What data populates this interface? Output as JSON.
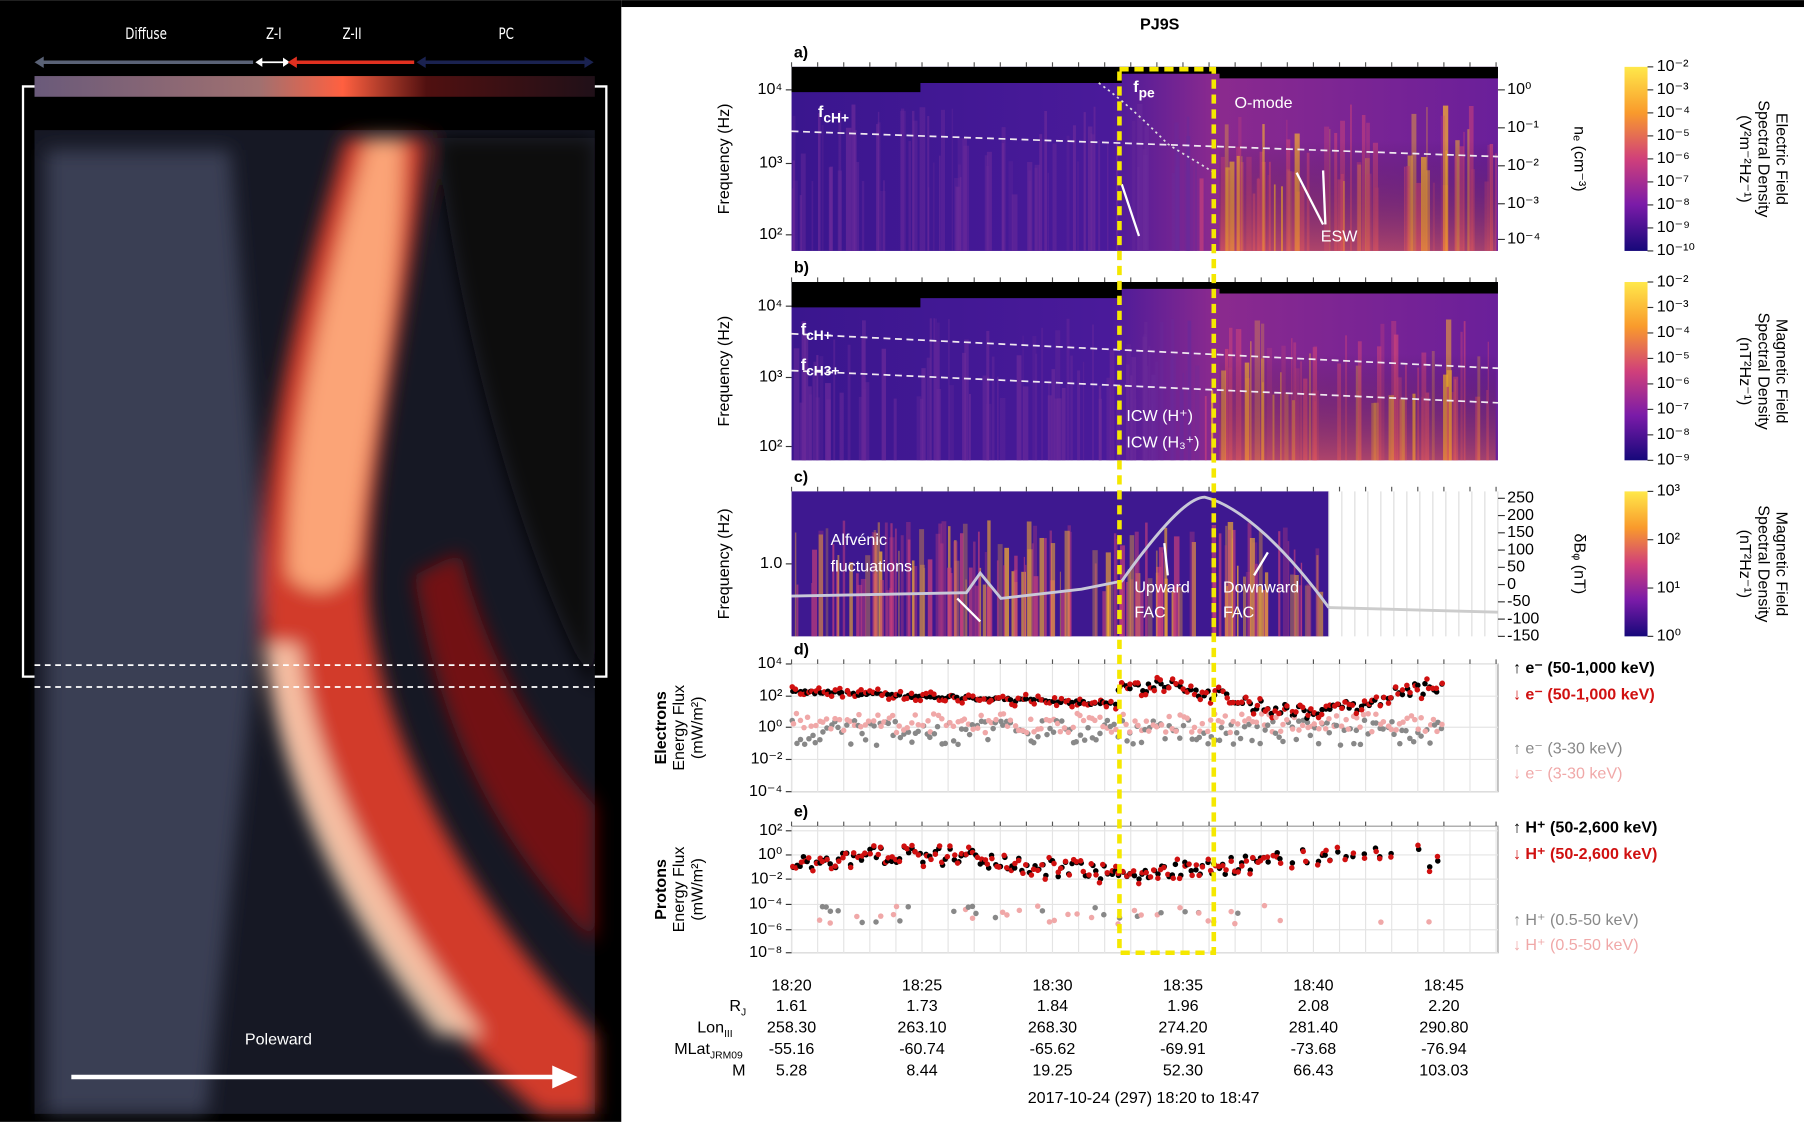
{
  "left_image": {
    "zones": [
      "Diffuse",
      "Z-I",
      "Z-II",
      "PC"
    ],
    "direction": "Poleward"
  },
  "title": "PJ9S",
  "panels": [
    {
      "label": "a)",
      "y_label": [
        "Frequency (Hz)"
      ],
      "y_ticks": [
        "10⁴",
        "10³",
        "10²"
      ],
      "annotations": [
        {
          "text": "f",
          "sub": "cH+"
        },
        {
          "text": "f",
          "sub": "pe"
        },
        {
          "text": "O-mode"
        },
        {
          "text": "ESW"
        }
      ],
      "right_ticks": [
        "10⁰",
        "10⁻¹",
        "10⁻²",
        "10⁻³",
        "10⁻⁴"
      ],
      "right_label": "nₑ (cm⁻³)",
      "colorbar_ticks": [
        "10⁻²",
        "10⁻³",
        "10⁻⁴",
        "10⁻⁵",
        "10⁻⁶",
        "10⁻⁷",
        "10⁻⁸",
        "10⁻⁹",
        "10⁻¹⁰"
      ],
      "colorbar_label": [
        "Electric Field",
        "Spectral Density",
        "(V²m⁻²Hz⁻¹)"
      ]
    },
    {
      "label": "b)",
      "y_label": [
        "Frequency (Hz)"
      ],
      "y_ticks": [
        "10⁴",
        "10³",
        "10²"
      ],
      "annotations": [
        {
          "text": "f",
          "sub": "cH+"
        },
        {
          "text": "f",
          "sub": "cH3+"
        },
        {
          "text": "ICW (H⁺)"
        },
        {
          "text": "ICW (H₃⁺)"
        }
      ],
      "colorbar_ticks": [
        "10⁻²",
        "10⁻³",
        "10⁻⁴",
        "10⁻⁵",
        "10⁻⁶",
        "10⁻⁷",
        "10⁻⁸",
        "10⁻⁹"
      ],
      "colorbar_label": [
        "Magnetic Field",
        "Spectral Density",
        "(nT²Hz⁻¹)"
      ]
    },
    {
      "label": "c)",
      "y_label": [
        "Frequency (Hz)"
      ],
      "y_ticks": [
        "1.0"
      ],
      "annotations": [
        {
          "text": "Alfvénic"
        },
        {
          "text": "fluctuations"
        },
        {
          "text": "Upward"
        },
        {
          "text": "FAC"
        },
        {
          "text": "Downward"
        },
        {
          "text": "FAC"
        }
      ],
      "right_ticks": [
        "250",
        "200",
        "150",
        "100",
        "50",
        "0",
        "-50",
        "-100",
        "-150"
      ],
      "right_label": "δBᵩ (nT)",
      "colorbar_ticks": [
        "10³",
        "10²",
        "10¹",
        "10⁰"
      ],
      "colorbar_label": [
        "Magnetic Field",
        "Spectral Density",
        "(nT²Hz⁻¹)"
      ]
    },
    {
      "label": "d)",
      "y_label": [
        "Electrons",
        "Energy Flux",
        "(mW/m²)"
      ],
      "y_ticks": [
        "10⁴",
        "10²",
        "10⁰",
        "10⁻²",
        "10⁻⁴"
      ],
      "legend": [
        "↑ e⁻ (50-1,000 keV)",
        "↓ e⁻ (50-1,000 keV)",
        "↑ e⁻ (3-30 keV)",
        "↓ e⁻ (3-30 keV)"
      ]
    },
    {
      "label": "e)",
      "y_label": [
        "Protons",
        "Energy Flux",
        "(mW/m²)"
      ],
      "y_ticks": [
        "10²",
        "10⁰",
        "10⁻²",
        "10⁻⁴",
        "10⁻⁶",
        "10⁻⁸"
      ],
      "legend": [
        "↑ H⁺ (50-2,600 keV)",
        "↓ H⁺ (50-2,600 keV)",
        "↑ H⁺ (0.5-50 keV)",
        "↓ H⁺ (0.5-50 keV)"
      ]
    }
  ],
  "x_ticks": [
    "18:20",
    "18:25",
    "18:30",
    "18:35",
    "18:40",
    "18:45"
  ],
  "ephemeris": [
    {
      "name": "R",
      "sub": "J",
      "values": [
        "1.61",
        "1.73",
        "1.84",
        "1.96",
        "2.08",
        "2.20"
      ]
    },
    {
      "name": "Lon",
      "sub": "III",
      "values": [
        "258.30",
        "263.10",
        "268.30",
        "274.20",
        "281.40",
        "290.80"
      ]
    },
    {
      "name": "MLat",
      "sub": "JRM09",
      "values": [
        "-55.16",
        "-60.74",
        "-65.62",
        "-69.91",
        "-73.68",
        "-76.94"
      ]
    },
    {
      "name": "M",
      "values": [
        "5.28",
        "8.44",
        "19.25",
        "52.30",
        "66.43",
        "103.03"
      ]
    }
  ],
  "footer": "2017-10-24 (297) 18:20 to 18:47"
}
